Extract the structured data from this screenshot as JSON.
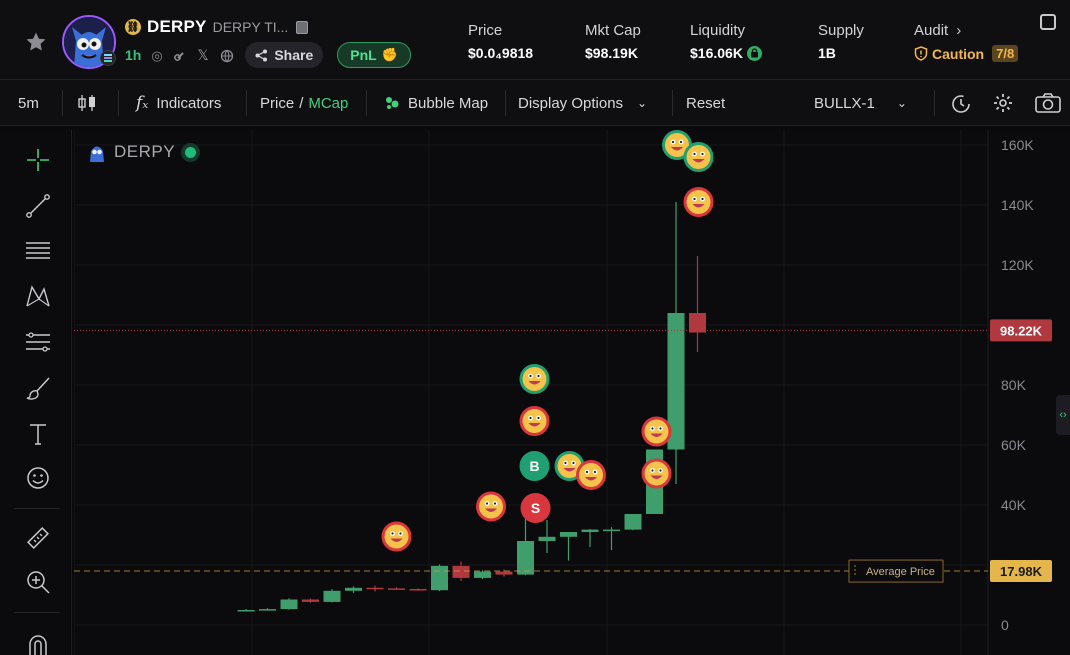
{
  "header": {
    "token_symbol": "DERPY",
    "token_name": "DERPY TI...",
    "age": "1h",
    "share_label": "Share",
    "pnl_label": "PnL",
    "stats": [
      {
        "label": "Price",
        "value": "$0.0₄9818"
      },
      {
        "label": "Mkt Cap",
        "value": "$98.19K"
      },
      {
        "label": "Liquidity",
        "value": "$16.06K"
      },
      {
        "label": "Supply",
        "value": "1B"
      }
    ],
    "audit": {
      "label": "Audit",
      "status": "Caution",
      "score": "7/8"
    }
  },
  "toolbar": {
    "interval": "5m",
    "indicators": "Indicators",
    "price_label": "Price",
    "slash": "/",
    "mcap_label": "MCap",
    "bubble_map": "Bubble Map",
    "display_options": "Display Options",
    "reset": "Reset",
    "source": "BULLX-1"
  },
  "chart": {
    "legend_symbol": "DERPY",
    "average_price_label": "Average Price",
    "colors": {
      "up": "#3f9e6c",
      "down": "#b0393f",
      "avg_line": "#c79a3c",
      "price_line": "#b0393f"
    }
  },
  "chart_data": {
    "type": "candlestick",
    "y_ticks": [
      "160K",
      "140K",
      "120K",
      "100K",
      "80K",
      "60K",
      "40K",
      "20K",
      "0"
    ],
    "y_tick_values": [
      160000,
      140000,
      120000,
      100000,
      80000,
      60000,
      40000,
      20000,
      0
    ],
    "ylim": [
      -7000,
      165000
    ],
    "current_value": 98220,
    "current_label": "98.22K",
    "average_value": 17980,
    "average_label": "17.98K",
    "candles": [
      {
        "o": 4800,
        "h": 5300,
        "l": 4600,
        "c": 5000
      },
      {
        "o": 5000,
        "h": 5600,
        "l": 4800,
        "c": 5300
      },
      {
        "o": 5300,
        "h": 8900,
        "l": 5100,
        "c": 8500
      },
      {
        "o": 8500,
        "h": 8800,
        "l": 7400,
        "c": 7700
      },
      {
        "o": 7700,
        "h": 11900,
        "l": 7500,
        "c": 11400
      },
      {
        "o": 11400,
        "h": 12900,
        "l": 10700,
        "c": 12400
      },
      {
        "o": 12400,
        "h": 13100,
        "l": 11200,
        "c": 12200
      },
      {
        "o": 12200,
        "h": 12600,
        "l": 11800,
        "c": 12000
      },
      {
        "o": 12000,
        "h": 12200,
        "l": 11400,
        "c": 11600
      },
      {
        "o": 11600,
        "h": 20200,
        "l": 11300,
        "c": 19700
      },
      {
        "o": 19700,
        "h": 21200,
        "l": 14700,
        "c": 15700
      },
      {
        "o": 15700,
        "h": 18200,
        "l": 15300,
        "c": 17800
      },
      {
        "o": 17800,
        "h": 18500,
        "l": 16200,
        "c": 16800
      },
      {
        "o": 16800,
        "h": 41000,
        "l": 16600,
        "c": 28000
      },
      {
        "o": 28000,
        "h": 35000,
        "l": 24000,
        "c": 29400
      },
      {
        "o": 29400,
        "h": 31000,
        "l": 21500,
        "c": 31000
      },
      {
        "o": 31000,
        "h": 32000,
        "l": 26000,
        "c": 31800
      },
      {
        "o": 31800,
        "h": 32600,
        "l": 25000,
        "c": 31800
      },
      {
        "o": 31800,
        "h": 37000,
        "l": 31600,
        "c": 37000
      },
      {
        "o": 37000,
        "h": 58500,
        "l": 37000,
        "c": 58500
      },
      {
        "o": 58500,
        "h": 141000,
        "l": 47000,
        "c": 104000
      },
      {
        "o": 104000,
        "h": 123000,
        "l": 91000,
        "c": 97500
      }
    ],
    "markers": [
      {
        "candle": 7,
        "value": 29500,
        "kind": "sell",
        "label": ""
      },
      {
        "candle": 12,
        "value": 39500,
        "kind": "sell",
        "label": ""
      },
      {
        "candle": 13,
        "value": 39000,
        "kind": "sell",
        "label": "S"
      },
      {
        "candle": 13,
        "value": 82000,
        "kind": "buy",
        "label": ""
      },
      {
        "candle": 13,
        "value": 68000,
        "kind": "sell",
        "label": ""
      },
      {
        "candle": 13,
        "value": 53000,
        "kind": "buy",
        "label": "B"
      },
      {
        "candle": 15,
        "value": 53000,
        "kind": "buy",
        "label": ""
      },
      {
        "candle": 16,
        "value": 50000,
        "kind": "sell",
        "label": ""
      },
      {
        "candle": 19,
        "value": 64500,
        "kind": "sell",
        "label": ""
      },
      {
        "candle": 19,
        "value": 50500,
        "kind": "sell",
        "label": ""
      },
      {
        "candle": 20,
        "value": 160000,
        "kind": "dev",
        "label": ""
      },
      {
        "candle": 21,
        "value": 156000,
        "kind": "buy",
        "label": ""
      },
      {
        "candle": 21,
        "value": 141000,
        "kind": "sell",
        "label": ""
      }
    ]
  }
}
